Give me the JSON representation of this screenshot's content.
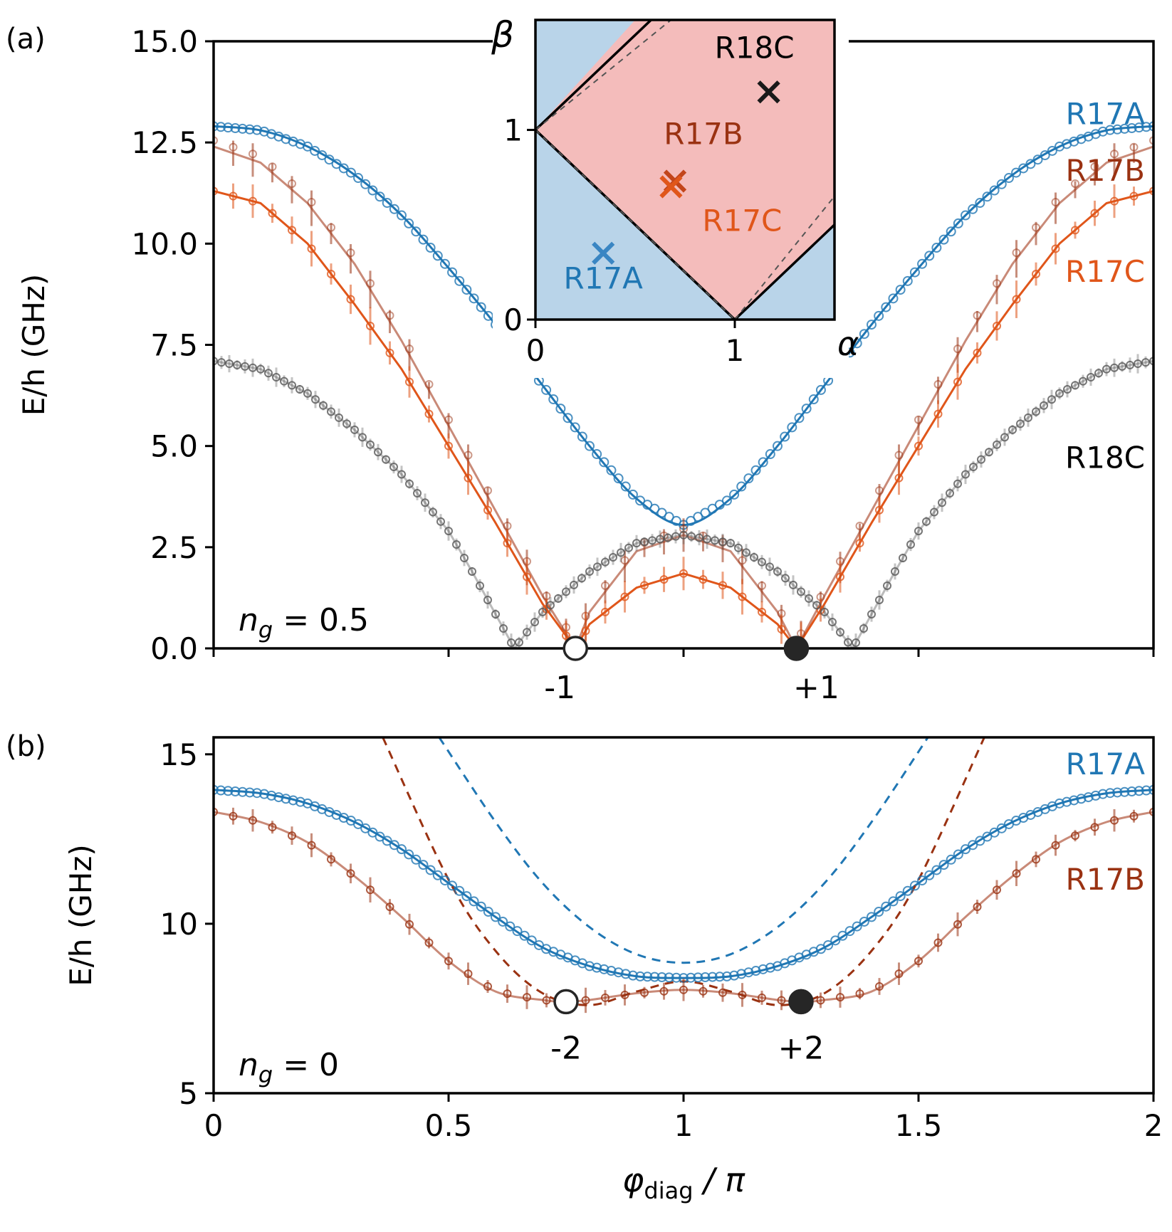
{
  "colors": {
    "r17a": "#2077b4",
    "r17b": "#9a3212",
    "r17c": "#e0561a",
    "r18c": "#555555",
    "r18c_curve": "#b4b4b4",
    "r17b_light": "#c98a78",
    "region_blue": "#b9d4e9",
    "region_red": "#f4bcbb",
    "ink": "#000000"
  },
  "chart_data": [
    {
      "id": "a",
      "panel_label": "(a)",
      "type": "line",
      "xlabel": "",
      "ylabel": "E/h (GHz)",
      "xlim": [
        0,
        2
      ],
      "ylim": [
        0,
        15
      ],
      "yticks": [
        0,
        2.5,
        5,
        7.5,
        10,
        12.5,
        15
      ],
      "ytick_labels": [
        "0.0",
        "2.5",
        "5.0",
        "7.5",
        "10.0",
        "12.5",
        "15.0"
      ],
      "xticks": [
        0,
        0.5,
        1,
        1.5,
        2
      ],
      "annotation": {
        "text": "n_g = 0.5",
        "prefix": "n",
        "sub": "g",
        "rest": " = 0.5"
      },
      "markers": [
        {
          "x": 0.77,
          "y": 0,
          "label": "-1",
          "filled": false
        },
        {
          "x": 1.24,
          "y": 0,
          "label": "+1",
          "filled": true
        }
      ],
      "legend": [
        {
          "text": "R17A",
          "series": "R17A",
          "y": 13.2
        },
        {
          "text": "R17B",
          "series": "R17B",
          "y": 11.8
        },
        {
          "text": "R17C",
          "series": "R17C",
          "y": 9.3
        },
        {
          "text": "R18C",
          "series": "R18C",
          "y": 4.7
        }
      ],
      "series": [
        {
          "name": "R17A",
          "x": [
            0,
            0.1,
            0.2,
            0.3,
            0.4,
            0.5,
            0.6,
            0.7,
            0.8,
            0.9,
            1.0,
            1.1,
            1.2,
            1.3,
            1.4,
            1.5,
            1.6,
            1.7,
            1.8,
            1.9,
            2.0
          ],
          "y": [
            12.9,
            12.8,
            12.4,
            11.7,
            10.7,
            9.4,
            8.0,
            6.5,
            5.0,
            3.7,
            3.05,
            3.7,
            5.0,
            6.5,
            8.0,
            9.4,
            10.7,
            11.7,
            12.4,
            12.8,
            12.9
          ]
        },
        {
          "name": "R17B",
          "x": [
            0,
            0.1,
            0.2,
            0.3,
            0.4,
            0.5,
            0.6,
            0.7,
            0.77,
            0.8,
            0.9,
            1.0,
            1.1,
            1.2,
            1.24,
            1.3,
            1.4,
            1.5,
            1.6,
            1.7,
            1.8,
            1.9,
            2.0
          ],
          "y": [
            12.4,
            12.0,
            11.0,
            9.5,
            7.6,
            5.5,
            3.4,
            1.3,
            0.0,
            0.9,
            2.4,
            2.8,
            2.4,
            0.9,
            0.0,
            1.3,
            3.4,
            5.5,
            7.6,
            9.5,
            11.0,
            12.0,
            12.4
          ]
        },
        {
          "name": "R17C",
          "x": [
            0,
            0.1,
            0.2,
            0.3,
            0.4,
            0.5,
            0.6,
            0.7,
            0.77,
            0.8,
            0.9,
            1.0,
            1.1,
            1.2,
            1.24,
            1.3,
            1.4,
            1.5,
            1.6,
            1.7,
            1.8,
            1.9,
            2.0
          ],
          "y": [
            11.3,
            11.0,
            10.0,
            8.5,
            6.9,
            5.0,
            3.1,
            1.1,
            0.0,
            0.6,
            1.5,
            1.85,
            1.5,
            0.6,
            0.0,
            1.1,
            3.1,
            5.0,
            6.9,
            8.5,
            10.0,
            11.0,
            11.3
          ]
        },
        {
          "name": "R18C",
          "x": [
            0,
            0.1,
            0.2,
            0.3,
            0.4,
            0.5,
            0.55,
            0.64,
            0.7,
            0.8,
            0.9,
            1.0,
            1.1,
            1.2,
            1.3,
            1.36,
            1.45,
            1.5,
            1.6,
            1.7,
            1.8,
            1.9,
            2.0
          ],
          "y": [
            7.1,
            6.9,
            6.3,
            5.4,
            4.3,
            2.9,
            1.9,
            0.0,
            0.9,
            1.9,
            2.6,
            2.8,
            2.6,
            1.9,
            0.9,
            0.0,
            1.9,
            2.9,
            4.3,
            5.4,
            6.3,
            6.9,
            7.1
          ]
        }
      ]
    },
    {
      "id": "b",
      "panel_label": "(b)",
      "type": "line",
      "xlabel": "φdiag / π",
      "xlabel_main": "φ",
      "xlabel_sub": "diag",
      "xlabel_rest": " / π",
      "ylabel": "E/h (GHz)",
      "xlim": [
        0,
        2
      ],
      "ylim": [
        5,
        15.5
      ],
      "yticks": [
        5,
        10,
        15
      ],
      "ytick_labels": [
        "5",
        "10",
        "15"
      ],
      "xticks": [
        0,
        0.5,
        1,
        1.5,
        2
      ],
      "xtick_labels": [
        "0",
        "0.5",
        "1",
        "1.5",
        "2"
      ],
      "annotation": {
        "text": "n_g = 0",
        "prefix": "n",
        "sub": "g",
        "rest": " = 0"
      },
      "markers": [
        {
          "x": 0.75,
          "y": 7.7,
          "label": "-2",
          "filled": false
        },
        {
          "x": 1.25,
          "y": 7.7,
          "label": "+2",
          "filled": true
        }
      ],
      "legend": [
        {
          "text": "R17A",
          "series": "R17A",
          "y": 14.7
        },
        {
          "text": "R17B",
          "series": "R17B",
          "y": 11.3
        }
      ],
      "series": [
        {
          "name": "R17A",
          "x": [
            0,
            0.1,
            0.2,
            0.3,
            0.4,
            0.5,
            0.6,
            0.7,
            0.8,
            0.9,
            1.0,
            1.1,
            1.2,
            1.3,
            1.4,
            1.5,
            1.6,
            1.7,
            1.8,
            1.9,
            2.0
          ],
          "y": [
            13.95,
            13.85,
            13.55,
            13.0,
            12.2,
            11.2,
            10.2,
            9.3,
            8.75,
            8.45,
            8.4,
            8.45,
            8.75,
            9.3,
            10.2,
            11.2,
            12.2,
            13.0,
            13.55,
            13.85,
            13.95
          ]
        },
        {
          "name": "R17B",
          "x": [
            0,
            0.1,
            0.2,
            0.3,
            0.4,
            0.5,
            0.6,
            0.7,
            0.75,
            0.8,
            0.9,
            1.0,
            1.1,
            1.2,
            1.25,
            1.3,
            1.4,
            1.5,
            1.6,
            1.7,
            1.8,
            1.9,
            2.0
          ],
          "y": [
            13.3,
            13.0,
            12.4,
            11.4,
            10.2,
            8.9,
            8.0,
            7.75,
            7.7,
            7.75,
            7.95,
            8.05,
            7.95,
            7.75,
            7.7,
            7.75,
            8.0,
            8.9,
            10.2,
            11.4,
            12.4,
            13.0,
            13.3
          ]
        },
        {
          "name": "R17A-dashed",
          "x": [
            0.48,
            0.6,
            0.7,
            0.8,
            0.9,
            1.0,
            1.1,
            1.2,
            1.3,
            1.4,
            1.52
          ],
          "y": [
            15.5,
            13.0,
            11.2,
            9.9,
            9.1,
            8.85,
            9.1,
            9.9,
            11.2,
            13.0,
            15.5
          ]
        },
        {
          "name": "R17B-dashed",
          "x": [
            0.36,
            0.5,
            0.6,
            0.7,
            0.8,
            0.9,
            1.0,
            1.1,
            1.2,
            1.3,
            1.4,
            1.5,
            1.64
          ],
          "y": [
            15.5,
            11.3,
            9.2,
            7.95,
            7.6,
            8.0,
            8.3,
            8.0,
            7.6,
            7.95,
            9.2,
            11.3,
            15.5
          ]
        }
      ]
    },
    {
      "id": "inset",
      "type": "scatter",
      "xlabel": "α",
      "ylabel": "β",
      "xlim": [
        0,
        1.5
      ],
      "ylim": [
        0,
        1.58
      ],
      "xticks": [
        0,
        1
      ],
      "xtick_labels": [
        "0",
        "1"
      ],
      "yticks": [
        0,
        1
      ],
      "ytick_labels": [
        "0",
        "1"
      ],
      "region_red_polygon": [
        [
          0,
          1
        ],
        [
          0.5,
          1.58
        ],
        [
          1.5,
          1.58
        ],
        [
          1.5,
          0.5
        ],
        [
          1,
          0
        ]
      ],
      "boundary_lines": [
        [
          [
            0,
            1
          ],
          [
            1,
            0
          ]
        ],
        [
          [
            0,
            1
          ],
          [
            0.58,
            1.58
          ]
        ],
        [
          [
            1,
            0
          ],
          [
            1.5,
            0.5
          ]
        ]
      ],
      "dashed_lines": [
        [
          [
            0,
            1
          ],
          [
            0.68,
            1.58
          ]
        ],
        [
          [
            0,
            1
          ],
          [
            1.0,
            0.0
          ]
        ],
        [
          [
            1,
            0
          ],
          [
            1.5,
            0.65
          ]
        ]
      ],
      "points": [
        {
          "name": "R17A",
          "x": 0.34,
          "y": 0.35,
          "label": "R17A"
        },
        {
          "name": "R17B",
          "x": 0.7,
          "y": 0.73,
          "label": "R17B"
        },
        {
          "name": "R17C",
          "x": 0.68,
          "y": 0.7,
          "label": "R17C"
        },
        {
          "name": "R18C",
          "x": 1.17,
          "y": 1.2,
          "label": "R18C"
        }
      ]
    }
  ]
}
